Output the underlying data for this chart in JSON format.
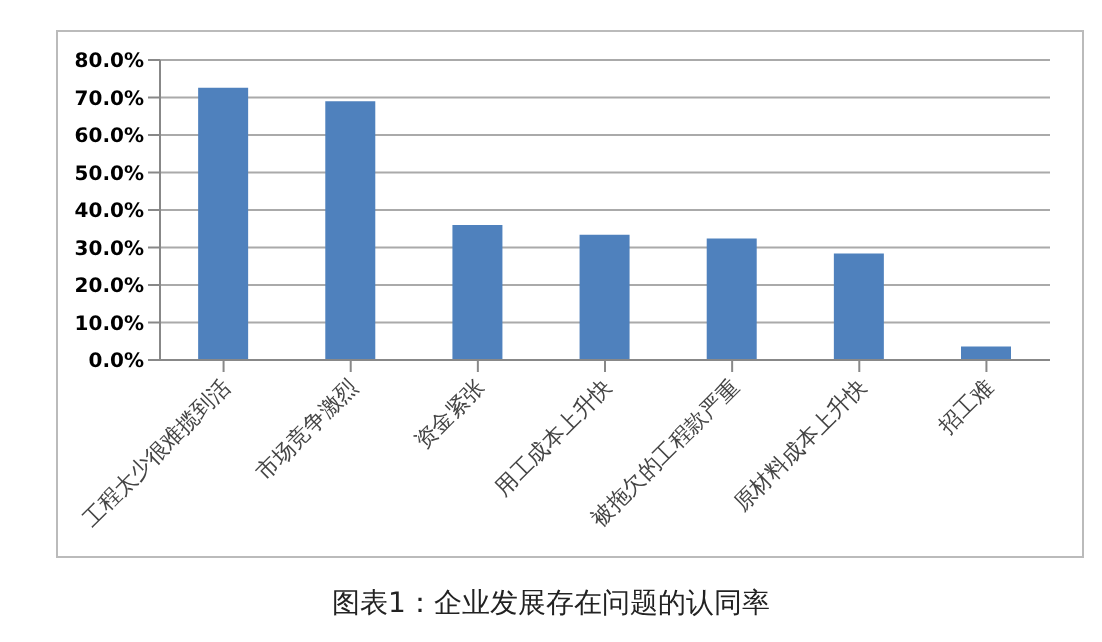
{
  "chart_data": {
    "type": "bar",
    "title": "图表1：企业发展存在问题的认同率",
    "categories": [
      "工程太少很难揽到活",
      "市场竞争激烈",
      "资金紧张",
      "用工成本上升快",
      "被拖欠的工程款严重",
      "原材料成本上升快",
      "招工难"
    ],
    "values": [
      72.6,
      69,
      36,
      33.4,
      32.4,
      28.4,
      3.6
    ],
    "color": "#4f81bd",
    "ylim": [
      0,
      80
    ],
    "yticks": [
      {
        "value": 0,
        "label": "0.0%"
      },
      {
        "value": 10,
        "label": "10.0%"
      },
      {
        "value": 20,
        "label": "20.0%"
      },
      {
        "value": 30,
        "label": "30.0%"
      },
      {
        "value": 40,
        "label": "40.0%"
      },
      {
        "value": 50,
        "label": "50.0%"
      },
      {
        "value": 60,
        "label": "60.0%"
      },
      {
        "value": 70,
        "label": "70.0%"
      },
      {
        "value": 80,
        "label": "80.0%"
      }
    ],
    "grid": "y"
  }
}
